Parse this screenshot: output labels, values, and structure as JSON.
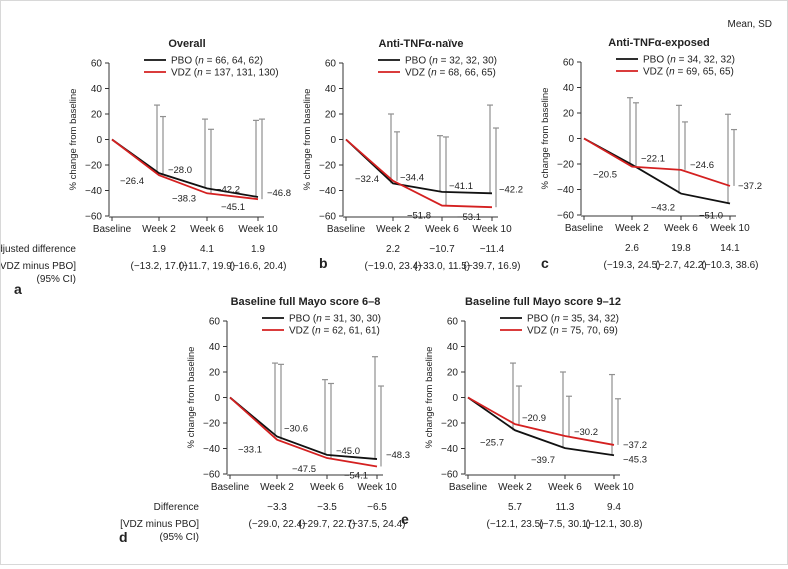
{
  "note": "Mean, SD",
  "y_axis_label": "% change from baseline",
  "colors": {
    "pbo": "#111111",
    "vdz": "#d42020",
    "err": "#909090",
    "axis": "#333333"
  },
  "row_labels": {
    "top": [
      "Adjusted difference",
      "[VDZ minus PBO]",
      "(95% CI)"
    ],
    "bottom": [
      "Difference",
      "[VDZ minus PBO]",
      "(95% CI)"
    ]
  },
  "chart_data": [
    {
      "panel": "a",
      "type": "line",
      "title": "Overall",
      "categories": [
        "Baseline",
        "Week 2",
        "Week 6",
        "Week 10"
      ],
      "ylim": [
        -60,
        60
      ],
      "yticks": [
        -60,
        -40,
        -20,
        0,
        20,
        40,
        60
      ],
      "series": [
        {
          "name": "PBO",
          "n": "66, 64, 62",
          "values": [
            0,
            -26.4,
            -38.3,
            -45.1
          ],
          "sd_upper": [
            null,
            27,
            16,
            15
          ]
        },
        {
          "name": "VDZ",
          "n": "137, 131, 130",
          "values": [
            0,
            -28.0,
            -42.2,
            -46.8
          ],
          "sd_upper": [
            null,
            18,
            8,
            16
          ]
        }
      ],
      "labels": {
        "pbo": [
          "",
          "−26.4",
          "−38.3",
          "−45.1"
        ],
        "vdz": [
          "",
          "−28.0",
          "−42.2",
          "−46.8"
        ]
      },
      "diff": [
        "1.9",
        "4.1",
        "1.9"
      ],
      "ci": [
        "(−13.2, 17.0)",
        "(−11.7, 19.9)",
        "(−16.6, 20.4)"
      ]
    },
    {
      "panel": "b",
      "type": "line",
      "title": "Anti-TNFα-naïve",
      "categories": [
        "Baseline",
        "Week 2",
        "Week 6",
        "Week 10"
      ],
      "ylim": [
        -60,
        60
      ],
      "yticks": [
        -60,
        -40,
        -20,
        0,
        20,
        40,
        60
      ],
      "series": [
        {
          "name": "PBO",
          "n": "32, 32, 30",
          "values": [
            0,
            -34.4,
            -41.1,
            -42.2
          ],
          "sd_upper": [
            null,
            20,
            3,
            27
          ]
        },
        {
          "name": "VDZ",
          "n": "68, 66, 65",
          "values": [
            0,
            -32.4,
            -51.8,
            -53.1
          ],
          "sd_upper": [
            null,
            6,
            2,
            9
          ]
        }
      ],
      "labels": {
        "pbo": [
          "",
          "−34.4",
          "−41.1",
          "−42.2"
        ],
        "vdz": [
          "",
          "−32.4",
          "−51.8",
          "−53.1"
        ]
      },
      "diff": [
        "2.2",
        "−10.7",
        "−11.4"
      ],
      "ci": [
        "(−19.0, 23.4)",
        "(−33.0, 11.5)",
        "(−39.7, 16.9)"
      ]
    },
    {
      "panel": "c",
      "type": "line",
      "title": "Anti-TNFα-exposed",
      "categories": [
        "Baseline",
        "Week 2",
        "Week 6",
        "Week 10"
      ],
      "ylim": [
        -60,
        60
      ],
      "yticks": [
        -60,
        -40,
        -20,
        0,
        20,
        40,
        60
      ],
      "series": [
        {
          "name": "PBO",
          "n": "34, 32, 32",
          "values": [
            0,
            -20.5,
            -43.2,
            -51.0
          ],
          "sd_upper": [
            null,
            32,
            26,
            19
          ]
        },
        {
          "name": "VDZ",
          "n": "69, 65, 65",
          "values": [
            0,
            -22.1,
            -24.6,
            -37.2
          ],
          "sd_upper": [
            null,
            28,
            13,
            7
          ]
        }
      ],
      "labels": {
        "pbo": [
          "",
          "−20.5",
          "−43.2",
          "−51.0"
        ],
        "vdz": [
          "",
          "−22.1",
          "−24.6",
          "−37.2"
        ]
      },
      "diff": [
        "2.6",
        "19.8",
        "14.1"
      ],
      "ci": [
        "(−19.3, 24.5)",
        "(−2.7, 42.2)",
        "(−10.3, 38.6)"
      ]
    },
    {
      "panel": "d",
      "type": "line",
      "title": "Baseline full Mayo score 6–8",
      "categories": [
        "Baseline",
        "Week 2",
        "Week 6",
        "Week 10"
      ],
      "ylim": [
        -60,
        60
      ],
      "yticks": [
        -60,
        -40,
        -20,
        0,
        20,
        40,
        60
      ],
      "series": [
        {
          "name": "PBO",
          "n": "31, 30, 30",
          "values": [
            0,
            -30.6,
            -45.0,
            -48.3
          ],
          "sd_upper": [
            null,
            27,
            14,
            32
          ]
        },
        {
          "name": "VDZ",
          "n": "62, 61, 61",
          "values": [
            0,
            -33.1,
            -47.5,
            -54.1
          ],
          "sd_upper": [
            null,
            26,
            11,
            9
          ]
        }
      ],
      "labels": {
        "pbo": [
          "",
          "−30.6",
          "−45.0",
          "−48.3"
        ],
        "vdz": [
          "",
          "−33.1",
          "−47.5",
          "−54.1"
        ]
      },
      "diff": [
        "−3.3",
        "−3.5",
        "−6.5"
      ],
      "ci": [
        "(−29.0, 22.4)",
        "(−29.7, 22.7)",
        "(−37.5, 24.4)"
      ]
    },
    {
      "panel": "e",
      "type": "line",
      "title": "Baseline full Mayo score 9–12",
      "categories": [
        "Baseline",
        "Week 2",
        "Week 6",
        "Week 10"
      ],
      "ylim": [
        -60,
        60
      ],
      "yticks": [
        -60,
        -40,
        -20,
        0,
        20,
        40,
        60
      ],
      "series": [
        {
          "name": "PBO",
          "n": "35, 34, 32",
          "values": [
            0,
            -25.7,
            -39.7,
            -45.3
          ],
          "sd_upper": [
            null,
            27,
            20,
            18
          ]
        },
        {
          "name": "VDZ",
          "n": "75, 70, 69",
          "values": [
            0,
            -20.9,
            -30.2,
            -37.2
          ],
          "sd_upper": [
            null,
            9,
            1,
            -1
          ]
        }
      ],
      "labels": {
        "pbo": [
          "",
          "−25.7",
          "−39.7",
          "−45.3"
        ],
        "vdz": [
          "",
          "−20.9",
          "−30.2",
          "−37.2"
        ]
      },
      "diff": [
        "5.7",
        "11.3",
        "9.4"
      ],
      "ci": [
        "(−12.1, 23.5)",
        "(−7.5, 30.1)",
        "(−12.1, 30.8)"
      ]
    }
  ]
}
